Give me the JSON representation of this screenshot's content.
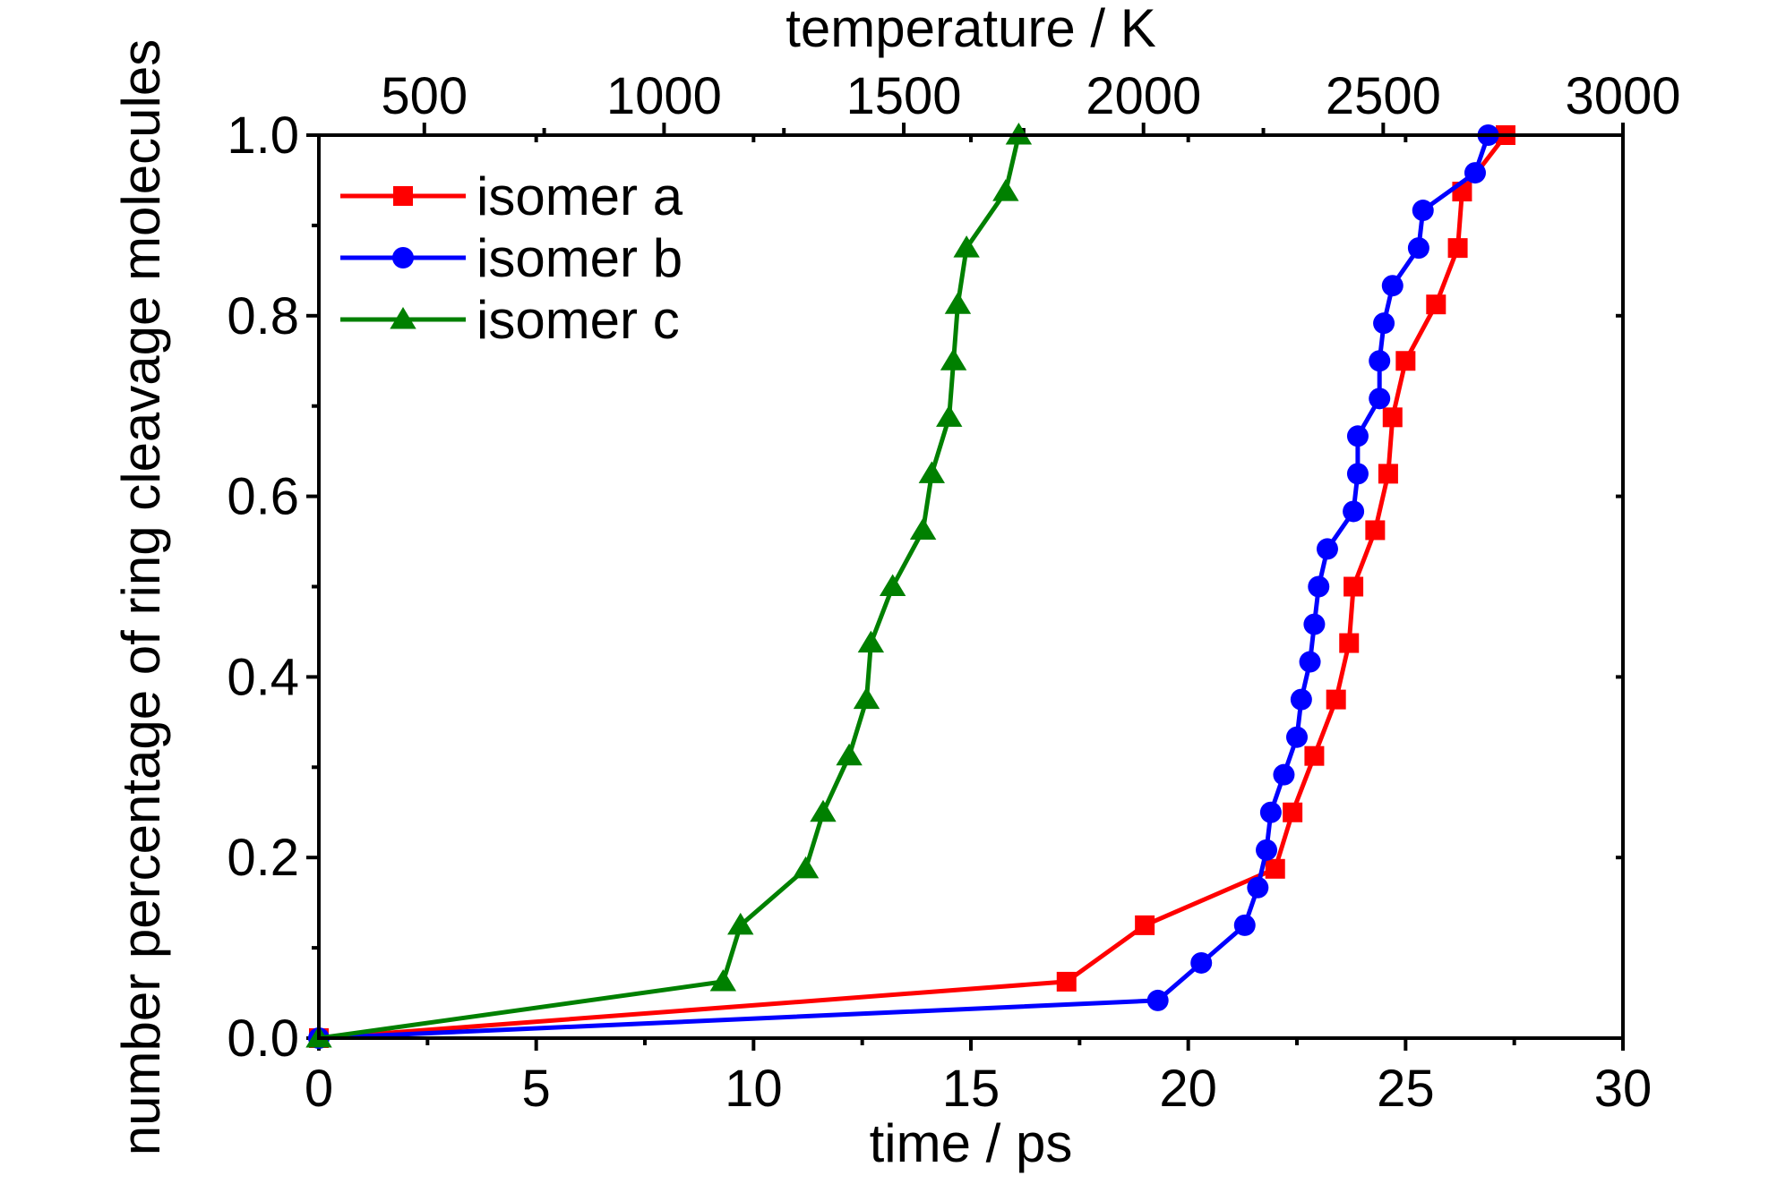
{
  "chart_data": {
    "type": "line",
    "xlabel": "time / ps",
    "ylabel": "number percentage of ring cleavage molecules",
    "x2label": "temperature / K",
    "xlim": [
      0,
      30
    ],
    "ylim": [
      0,
      1.0
    ],
    "x2lim": [
      280,
      3000
    ],
    "xticks": [
      0,
      5,
      10,
      15,
      20,
      25,
      30
    ],
    "xtick_labels": [
      "0",
      "5",
      "10",
      "15",
      "20",
      "25",
      "30"
    ],
    "yticks": [
      0,
      0.2,
      0.4,
      0.6,
      0.8,
      1.0
    ],
    "ytick_labels": [
      "0.0",
      "0.2",
      "0.4",
      "0.6",
      "0.8",
      "1.0"
    ],
    "x2ticks": [
      500,
      1000,
      1500,
      2000,
      2500,
      3000
    ],
    "x2tick_labels": [
      "500",
      "1000",
      "1500",
      "2000",
      "2500",
      "3000"
    ],
    "grid": false,
    "legend_position": "top-left",
    "series": [
      {
        "name": "isomer a",
        "color": "#ff0000",
        "marker": "square",
        "points": [
          [
            0,
            0
          ],
          [
            17.2,
            0.0625
          ],
          [
            19.0,
            0.125
          ],
          [
            22.0,
            0.1875
          ],
          [
            22.4,
            0.25
          ],
          [
            22.9,
            0.3125
          ],
          [
            23.4,
            0.375
          ],
          [
            23.7,
            0.4375
          ],
          [
            23.8,
            0.5
          ],
          [
            24.3,
            0.5625
          ],
          [
            24.6,
            0.625
          ],
          [
            24.7,
            0.6875
          ],
          [
            25.0,
            0.75
          ],
          [
            25.7,
            0.8125
          ],
          [
            26.2,
            0.875
          ],
          [
            26.3,
            0.9375
          ],
          [
            27.3,
            1.0
          ]
        ]
      },
      {
        "name": "isomer b",
        "color": "#0000ff",
        "marker": "circle",
        "points": [
          [
            0,
            0
          ],
          [
            19.3,
            0.0417
          ],
          [
            20.3,
            0.0833
          ],
          [
            21.3,
            0.125
          ],
          [
            21.6,
            0.1667
          ],
          [
            21.8,
            0.2083
          ],
          [
            21.9,
            0.25
          ],
          [
            22.2,
            0.2917
          ],
          [
            22.5,
            0.3333
          ],
          [
            22.6,
            0.375
          ],
          [
            22.8,
            0.4167
          ],
          [
            22.9,
            0.4583
          ],
          [
            23.0,
            0.5
          ],
          [
            23.2,
            0.5417
          ],
          [
            23.8,
            0.5833
          ],
          [
            23.9,
            0.625
          ],
          [
            23.9,
            0.6667
          ],
          [
            24.4,
            0.7083
          ],
          [
            24.4,
            0.75
          ],
          [
            24.5,
            0.7917
          ],
          [
            24.7,
            0.8333
          ],
          [
            25.3,
            0.875
          ],
          [
            25.4,
            0.9167
          ],
          [
            26.6,
            0.9583
          ],
          [
            26.9,
            1.0
          ]
        ]
      },
      {
        "name": "isomer c",
        "color": "#008000",
        "marker": "triangle",
        "points": [
          [
            0,
            0
          ],
          [
            9.3,
            0.0625
          ],
          [
            9.7,
            0.125
          ],
          [
            11.2,
            0.1875
          ],
          [
            11.6,
            0.25
          ],
          [
            12.2,
            0.3125
          ],
          [
            12.6,
            0.375
          ],
          [
            12.7,
            0.4375
          ],
          [
            13.2,
            0.5
          ],
          [
            13.9,
            0.5625
          ],
          [
            14.1,
            0.625
          ],
          [
            14.5,
            0.6875
          ],
          [
            14.6,
            0.75
          ],
          [
            14.7,
            0.8125
          ],
          [
            14.9,
            0.875
          ],
          [
            15.8,
            0.9375
          ],
          [
            16.1,
            1.0
          ]
        ]
      }
    ]
  }
}
